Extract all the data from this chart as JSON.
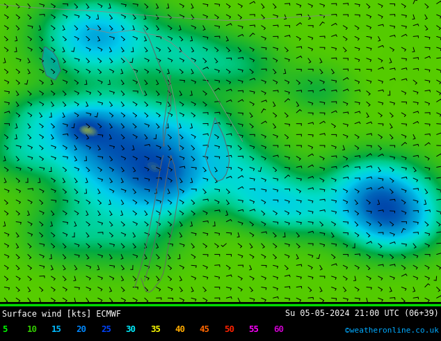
{
  "title_left": "Surface wind [kts] ECMWF",
  "title_right": "Su 05-05-2024 21:00 UTC (06+39)",
  "credit": "©weatheronline.co.uk",
  "legend_values": [
    5,
    10,
    15,
    20,
    25,
    30,
    35,
    40,
    45,
    50,
    55,
    60
  ],
  "legend_colors": [
    "#00ff00",
    "#33cc00",
    "#00bbff",
    "#0088ff",
    "#0044ff",
    "#00eeff",
    "#ffff00",
    "#ffaa00",
    "#ff6600",
    "#ff2200",
    "#ff00ff",
    "#cc00cc"
  ],
  "bg_color": "#000000",
  "green_line_color": "#00dd00",
  "bottom_bg": "#000000",
  "credit_color": "#00aaff",
  "wind_color_stops": [
    [
      0,
      "#ffffaa"
    ],
    [
      5,
      "#ddff00"
    ],
    [
      10,
      "#aaee00"
    ],
    [
      15,
      "#55cc00"
    ],
    [
      20,
      "#00aa44"
    ],
    [
      22,
      "#00cc88"
    ],
    [
      25,
      "#00ddcc"
    ],
    [
      28,
      "#00ccee"
    ],
    [
      30,
      "#00aadd"
    ],
    [
      33,
      "#0088cc"
    ],
    [
      35,
      "#0066bb"
    ],
    [
      38,
      "#0044aa"
    ],
    [
      40,
      "#ffff00"
    ],
    [
      45,
      "#ffaa00"
    ],
    [
      50,
      "#ff5500"
    ],
    [
      55,
      "#ff0000"
    ],
    [
      60,
      "#ff00ff"
    ],
    [
      65,
      "#cc00cc"
    ]
  ]
}
